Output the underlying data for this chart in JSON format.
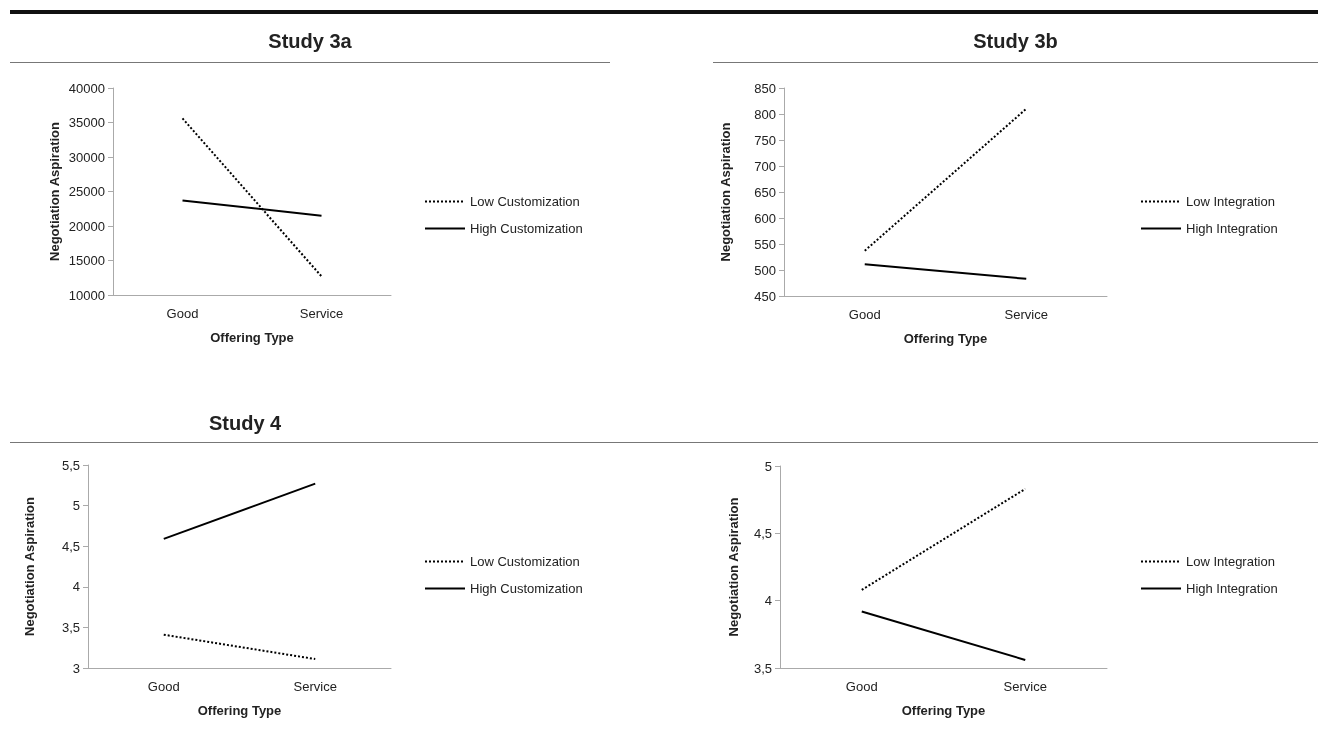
{
  "chart_data": [
    {
      "type": "line",
      "title": "Study 3a",
      "xlabel": "Offering Type",
      "ylabel": "Negotiation Aspiration",
      "categories": [
        "Good",
        "Service"
      ],
      "ylim": [
        10000,
        40000
      ],
      "yticks": [
        10000,
        15000,
        20000,
        25000,
        30000,
        35000,
        40000
      ],
      "grid": false,
      "legend": "right",
      "marker": "none",
      "series": [
        {
          "name": "Low Customization",
          "color": "#000000",
          "line_style": "dotted",
          "values": [
            35600,
            12700
          ]
        },
        {
          "name": "High Customization",
          "color": "#000000",
          "line_style": "solid",
          "values": [
            23700,
            21500
          ]
        }
      ]
    },
    {
      "type": "line",
      "title": "Study 3b",
      "xlabel": "Offering Type",
      "ylabel": "Negotiation Aspiration",
      "categories": [
        "Good",
        "Service"
      ],
      "ylim": [
        450,
        850
      ],
      "yticks": [
        450,
        500,
        550,
        600,
        650,
        700,
        750,
        800,
        850
      ],
      "grid": false,
      "legend": "right",
      "marker": "none",
      "series": [
        {
          "name": "Low Integration",
          "color": "#000000",
          "line_style": "dotted",
          "values": [
            537,
            810
          ]
        },
        {
          "name": "High Integration",
          "color": "#000000",
          "line_style": "solid",
          "values": [
            511,
            483
          ]
        }
      ]
    },
    {
      "type": "line",
      "title": "Study 4",
      "xlabel": "Offering Type",
      "ylabel": "Negotiation Aspiration",
      "categories": [
        "Good",
        "Service"
      ],
      "ylim": [
        3,
        5.5
      ],
      "yticks": [
        3,
        {
          "value": 3.5,
          "label": "3,5"
        },
        4,
        {
          "value": 4.5,
          "label": "4,5"
        },
        5,
        {
          "value": 5.5,
          "label": "5,5"
        }
      ],
      "grid": false,
      "legend": "right",
      "marker": "none",
      "series": [
        {
          "name": "Low Customization",
          "color": "#000000",
          "line_style": "dotted",
          "values": [
            3.41,
            3.11
          ]
        },
        {
          "name": "High Customization",
          "color": "#000000",
          "line_style": "solid",
          "values": [
            4.59,
            5.27
          ]
        }
      ]
    },
    {
      "type": "line",
      "xlabel": "Offering Type",
      "ylabel": "Negotiation Aspiration",
      "categories": [
        "Good",
        "Service"
      ],
      "ylim": [
        3.5,
        5
      ],
      "yticks": [
        {
          "value": 3.5,
          "label": "3,5"
        },
        4,
        {
          "value": 4.5,
          "label": "4,5"
        },
        5
      ],
      "grid": false,
      "legend": "right",
      "marker": "none",
      "series": [
        {
          "name": "Low Integration",
          "color": "#000000",
          "line_style": "dotted",
          "values": [
            4.08,
            4.83
          ]
        },
        {
          "name": "High Integration",
          "color": "#000000",
          "line_style": "solid",
          "values": [
            3.92,
            3.56
          ]
        }
      ]
    }
  ]
}
